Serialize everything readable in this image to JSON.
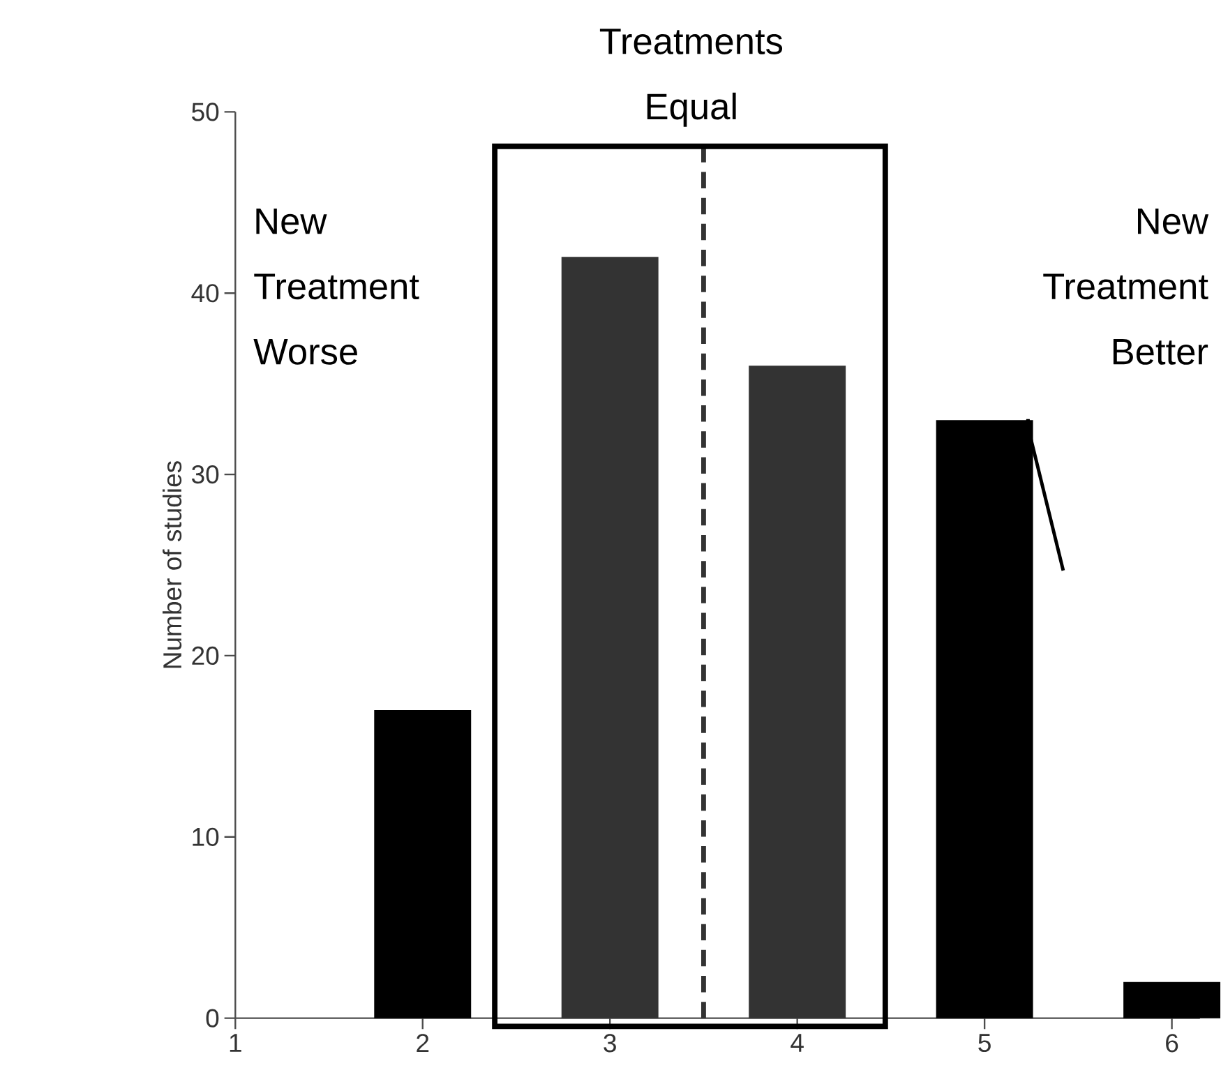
{
  "chart_data": {
    "type": "bar",
    "ylabel": "Number of studies",
    "x": [
      1,
      2,
      3,
      4,
      5,
      6
    ],
    "values": [
      0,
      17,
      42,
      36,
      33,
      2
    ],
    "colors": [
      "#000000",
      "#000000",
      "#333333",
      "#333333",
      "#000000",
      "#000000"
    ],
    "xlim": [
      1,
      6.15
    ],
    "xticks": [
      1,
      2,
      3,
      4,
      5,
      6
    ],
    "ylim": [
      0,
      50
    ],
    "yticks": [
      0,
      10,
      20,
      30,
      40,
      50
    ],
    "ref_lines": [
      {
        "axis": "x",
        "value": 3.5,
        "color": "#333333",
        "line_style": "dashed"
      }
    ],
    "annotations": [
      "Treatments Equal",
      "New Treatment Worse",
      "New Treatment Better"
    ]
  }
}
